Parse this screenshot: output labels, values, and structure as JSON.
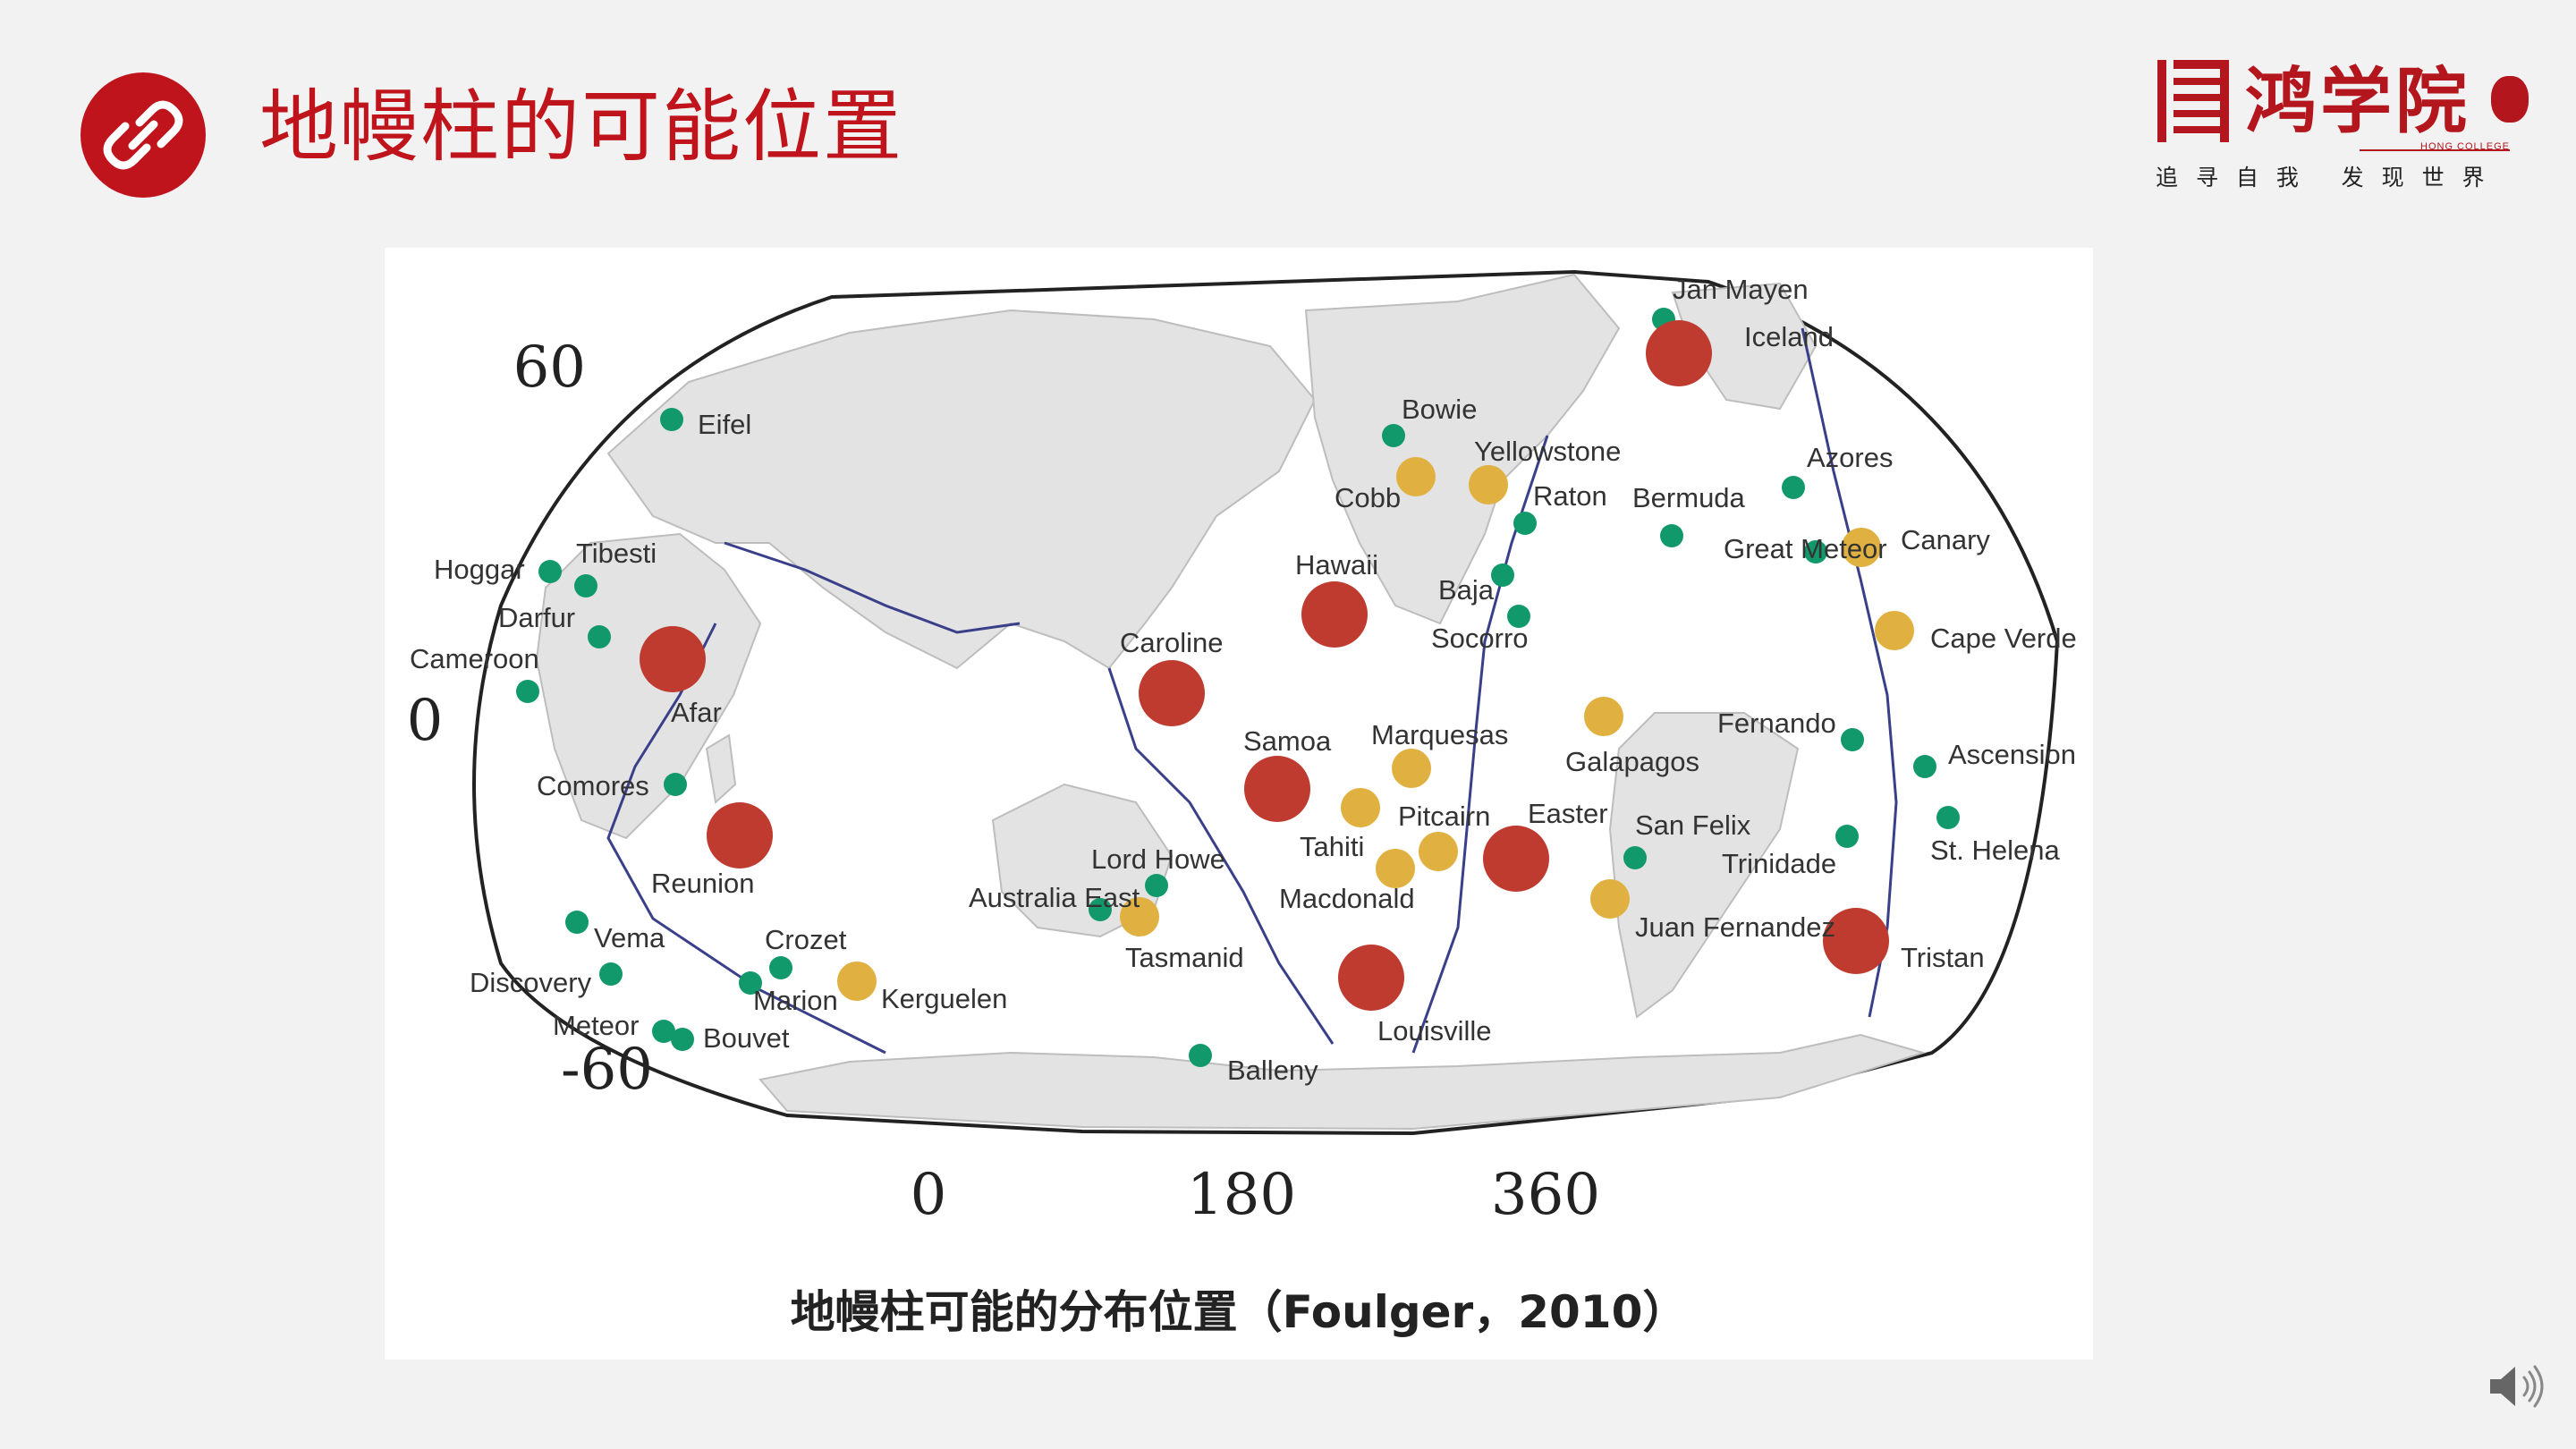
{
  "slide": {
    "title": "地幔柱的可能位置",
    "brand": {
      "name": "鸿学院",
      "english": "HONG COLLEGE",
      "slogan": "追 寻 自 我   发 现 世 界"
    },
    "colors": {
      "accent": "#c0141d",
      "plume_large": "#bf3b30",
      "plume_medium": "#e0b040",
      "plume_small": "#12996b",
      "plate_boundary": "#3a3f8a",
      "land": "#e3e3e3"
    },
    "icons": [
      "link-icon",
      "speaker-icon"
    ]
  },
  "map": {
    "caption": "地幔柱可能的分布位置（Foulger，2010）",
    "lat_ticks": [
      {
        "label": "60",
        "value": 60
      },
      {
        "label": "0",
        "value": 0
      },
      {
        "label": "-60",
        "value": -60
      }
    ],
    "lon_ticks": [
      {
        "label": "0",
        "value": 0
      },
      {
        "label": "180",
        "value": 180
      },
      {
        "label": "360",
        "value": 360
      }
    ],
    "plumes": [
      {
        "name": "Jan Mayen",
        "size": "small"
      },
      {
        "name": "Iceland",
        "size": "large"
      },
      {
        "name": "Eifel",
        "size": "small"
      },
      {
        "name": "Bowie",
        "size": "small"
      },
      {
        "name": "Yellowstone",
        "size": "medium"
      },
      {
        "name": "Cobb",
        "size": "medium"
      },
      {
        "name": "Raton",
        "size": "small"
      },
      {
        "name": "Bermuda",
        "size": "small"
      },
      {
        "name": "Azores",
        "size": "small"
      },
      {
        "name": "Great Meteor",
        "size": "small"
      },
      {
        "name": "Canary",
        "size": "medium"
      },
      {
        "name": "Hoggar",
        "size": "small"
      },
      {
        "name": "Tibesti",
        "size": "small"
      },
      {
        "name": "Darfur",
        "size": "small"
      },
      {
        "name": "Cameroon",
        "size": "small"
      },
      {
        "name": "Afar",
        "size": "large"
      },
      {
        "name": "Hawaii",
        "size": "large"
      },
      {
        "name": "Baja",
        "size": "small"
      },
      {
        "name": "Socorro",
        "size": "small"
      },
      {
        "name": "Cape Verde",
        "size": "medium"
      },
      {
        "name": "Caroline",
        "size": "large"
      },
      {
        "name": "Galapagos",
        "size": "medium"
      },
      {
        "name": "Fernando",
        "size": "small"
      },
      {
        "name": "Ascension",
        "size": "small"
      },
      {
        "name": "Comores",
        "size": "small"
      },
      {
        "name": "Samoa",
        "size": "large"
      },
      {
        "name": "Marquesas",
        "size": "medium"
      },
      {
        "name": "Reunion",
        "size": "large"
      },
      {
        "name": "Pitcairn",
        "size": "medium"
      },
      {
        "name": "Tahiti",
        "size": "medium"
      },
      {
        "name": "Easter",
        "size": "large"
      },
      {
        "name": "San Felix",
        "size": "small"
      },
      {
        "name": "Trinidade",
        "size": "small"
      },
      {
        "name": "St. Helena",
        "size": "small"
      },
      {
        "name": "Lord Howe",
        "size": "small"
      },
      {
        "name": "Macdonald",
        "size": "medium"
      },
      {
        "name": "Australia East",
        "size": "small"
      },
      {
        "name": "Tasmanid",
        "size": "medium"
      },
      {
        "name": "Juan Fernandez",
        "size": "medium"
      },
      {
        "name": "Tristan",
        "size": "large"
      },
      {
        "name": "Vema",
        "size": "small"
      },
      {
        "name": "Crozet",
        "size": "small"
      },
      {
        "name": "Discovery",
        "size": "small"
      },
      {
        "name": "Marion",
        "size": "small"
      },
      {
        "name": "Kerguelen",
        "size": "medium"
      },
      {
        "name": "Louisville",
        "size": "large"
      },
      {
        "name": "Meteor",
        "size": "small"
      },
      {
        "name": "Bouvet",
        "size": "small"
      },
      {
        "name": "Balleny",
        "size": "small"
      }
    ]
  }
}
